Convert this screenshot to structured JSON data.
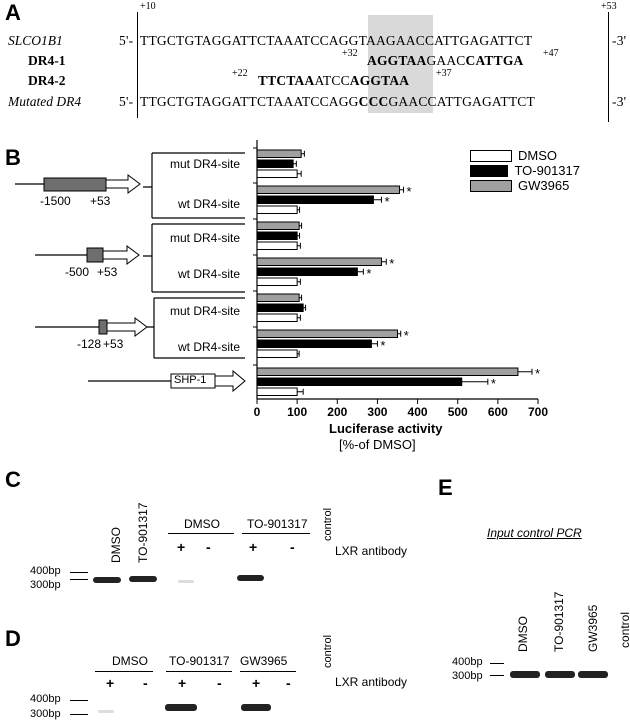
{
  "panels": {
    "A": "A",
    "B": "B",
    "C": "C",
    "D": "D",
    "E": "E"
  },
  "panelA": {
    "pos_start": "+10",
    "pos_end": "+53",
    "rows": [
      {
        "name": "SLCO1B1",
        "prefix": "5'-",
        "seq": "TTGCTGTAGGATTCTAAATCCAGGTAAGAACCATTGAGATTCT",
        "suffix": "-3'"
      },
      {
        "name": "DR4-1",
        "left_num": "+32",
        "seq_bold1": "AGGTAA",
        "seq_plain": "GAAC",
        "seq_bold2": "CATTGA",
        "right_num": "+47"
      },
      {
        "name": "DR4-2",
        "left_num": "+22",
        "seq_bold1": "TTCTAA",
        "seq_plain": "ATCC",
        "seq_bold2": "AGGTAA",
        "right_num": "+37"
      },
      {
        "name": "Mutated DR4",
        "prefix": "5'-",
        "seq_a": "TTGCTGTAGGATTCTAAATCCAGG",
        "seq_b": "CCC",
        "seq_c": "GAACCATTGAGATTCT",
        "suffix": "-3'"
      }
    ]
  },
  "panelB": {
    "constructs": [
      {
        "start": "-1500",
        "end": "+53"
      },
      {
        "start": "-500",
        "end": "+53"
      },
      {
        "start": "-128",
        "end": "+53"
      }
    ],
    "shp_label": "SHP-1",
    "group_labels": [
      "mut DR4-site",
      "wt DR4-site",
      "mut DR4-site",
      "wt DR4-site",
      "mut DR4-site",
      "wt DR4-site"
    ],
    "legend": [
      {
        "name": "DMSO",
        "color": "#ffffff"
      },
      {
        "name": "TO-901317",
        "color": "#000000"
      },
      {
        "name": "GW3965",
        "color": "#a0a0a0"
      }
    ],
    "xlabel": "Luciferase activity",
    "xsub": "[%-of DMSO]",
    "star": "*"
  },
  "chart_data": {
    "type": "bar",
    "orientation": "horizontal",
    "categories": [
      "mut DR4-site (-1500)",
      "wt DR4-site (-1500)",
      "mut DR4-site (-500)",
      "wt DR4-site (-500)",
      "mut DR4-site (-128)",
      "wt DR4-site (-128)",
      "SHP-1"
    ],
    "series": [
      {
        "name": "GW3965",
        "values": [
          110,
          355,
          105,
          310,
          105,
          350,
          650
        ],
        "errors": [
          8,
          10,
          6,
          12,
          6,
          8,
          35
        ],
        "significant": [
          false,
          true,
          false,
          true,
          false,
          true,
          true
        ]
      },
      {
        "name": "TO-901317",
        "values": [
          90,
          290,
          100,
          250,
          115,
          285,
          510
        ],
        "errors": [
          8,
          20,
          6,
          15,
          6,
          15,
          65
        ],
        "significant": [
          false,
          true,
          false,
          true,
          false,
          true,
          true
        ]
      },
      {
        "name": "DMSO",
        "values": [
          100,
          100,
          100,
          100,
          100,
          100,
          100
        ],
        "errors": [
          10,
          6,
          8,
          8,
          8,
          5,
          15
        ],
        "significant": [
          false,
          false,
          false,
          false,
          false,
          false,
          false
        ]
      }
    ],
    "xlim": [
      0,
      700
    ],
    "xticks": [
      0,
      100,
      200,
      300,
      400,
      500,
      600,
      700
    ],
    "xlabel": "Luciferase activity",
    "xsub": "[%-of DMSO]"
  },
  "panelC": {
    "lane_labels": [
      "DMSO",
      "TO-901317"
    ],
    "group_labels": [
      "DMSO",
      "TO-901317"
    ],
    "control": "control",
    "signs": [
      "+",
      "-",
      "+",
      "-"
    ],
    "antibody": "LXR antibody",
    "markers": [
      "400bp",
      "300bp"
    ]
  },
  "panelD": {
    "group_labels": [
      "DMSO",
      "TO-901317",
      "GW3965"
    ],
    "control": "control",
    "signs": [
      "+",
      "-",
      "+",
      "-",
      "+",
      "-"
    ],
    "antibody": "LXR antibody",
    "markers": [
      "400bp",
      "300bp"
    ]
  },
  "panelE": {
    "title": "Input control PCR",
    "lane_labels": [
      "DMSO",
      "TO-901317",
      "GW3965",
      "control"
    ],
    "markers": [
      "400bp",
      "300bp"
    ]
  }
}
